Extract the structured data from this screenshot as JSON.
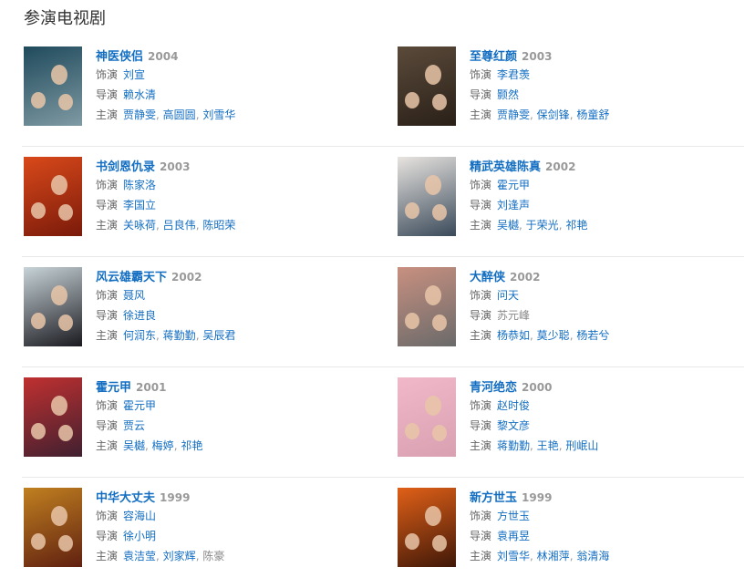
{
  "section_title": "参演电视剧",
  "labels": {
    "role": "饰演",
    "director": "导演",
    "stars": "主演",
    "separator": ", "
  },
  "colors": {
    "link": "#136ec2",
    "year": "#999999",
    "label": "#666666",
    "divider": "#e8e8e8"
  },
  "items": [
    {
      "title": "神医侠侣",
      "year": "2004",
      "role": [
        {
          "name": "刘宣",
          "link": true
        }
      ],
      "director": [
        {
          "name": "赖水清",
          "link": true
        }
      ],
      "stars": [
        {
          "name": "贾静雯",
          "link": true
        },
        {
          "name": "高圆圆",
          "link": true
        },
        {
          "name": "刘雪华",
          "link": true
        }
      ],
      "poster_colors": [
        "#1f4a5c",
        "#7f9aa3"
      ]
    },
    {
      "title": "至尊红颜",
      "year": "2003",
      "role": [
        {
          "name": "李君羡",
          "link": true
        }
      ],
      "director": [
        {
          "name": "颢然",
          "link": true
        }
      ],
      "stars": [
        {
          "name": "贾静雯",
          "link": true
        },
        {
          "name": "保剑锋",
          "link": true
        },
        {
          "name": "杨童舒",
          "link": true
        }
      ],
      "poster_colors": [
        "#5a4a3a",
        "#2a2018"
      ]
    },
    {
      "title": "书剑恩仇录",
      "year": "2003",
      "role": [
        {
          "name": "陈家洛",
          "link": true
        }
      ],
      "director": [
        {
          "name": "李国立",
          "link": true
        }
      ],
      "stars": [
        {
          "name": "关咏荷",
          "link": true
        },
        {
          "name": "吕良伟",
          "link": true
        },
        {
          "name": "陈昭荣",
          "link": true
        }
      ],
      "poster_colors": [
        "#d9491a",
        "#7a1a0a"
      ]
    },
    {
      "title": "精武英雄陈真",
      "year": "2002",
      "role": [
        {
          "name": "霍元甲",
          "link": true
        }
      ],
      "director": [
        {
          "name": "刘逢声",
          "link": true
        }
      ],
      "stars": [
        {
          "name": "吴樾",
          "link": true
        },
        {
          "name": "于荣光",
          "link": true
        },
        {
          "name": "祁艳",
          "link": true
        }
      ],
      "poster_colors": [
        "#e8e4e0",
        "#3a4a5a"
      ]
    },
    {
      "title": "风云雄霸天下",
      "year": "2002",
      "role": [
        {
          "name": "聂风",
          "link": true
        }
      ],
      "director": [
        {
          "name": "徐进良",
          "link": true
        }
      ],
      "stars": [
        {
          "name": "何润东",
          "link": true
        },
        {
          "name": "蒋勤勤",
          "link": true
        },
        {
          "name": "吴辰君",
          "link": true
        }
      ],
      "poster_colors": [
        "#c8d4d8",
        "#1a1a20"
      ]
    },
    {
      "title": "大醉侠",
      "year": "2002",
      "role": [
        {
          "name": "问天",
          "link": true
        }
      ],
      "director": [
        {
          "name": "苏元峰",
          "link": false
        }
      ],
      "stars": [
        {
          "name": "杨恭如",
          "link": true
        },
        {
          "name": "莫少聪",
          "link": true
        },
        {
          "name": "杨若兮",
          "link": true
        }
      ],
      "poster_colors": [
        "#c89080",
        "#6a6a6a"
      ]
    },
    {
      "title": "霍元甲",
      "year": "2001",
      "role": [
        {
          "name": "霍元甲",
          "link": true
        }
      ],
      "director": [
        {
          "name": "贾云",
          "link": true
        }
      ],
      "stars": [
        {
          "name": "吴樾",
          "link": true
        },
        {
          "name": "梅婷",
          "link": true
        },
        {
          "name": "祁艳",
          "link": true
        }
      ],
      "poster_colors": [
        "#c03030",
        "#402030"
      ]
    },
    {
      "title": "青河绝恋",
      "year": "2000",
      "role": [
        {
          "name": "赵时俊",
          "link": true
        }
      ],
      "director": [
        {
          "name": "黎文彦",
          "link": true
        }
      ],
      "stars": [
        {
          "name": "蒋勤勤",
          "link": true
        },
        {
          "name": "王艳",
          "link": true
        },
        {
          "name": "刑岷山",
          "link": true
        }
      ],
      "poster_colors": [
        "#f0b8c8",
        "#d8a0b0"
      ]
    },
    {
      "title": "中华大丈夫",
      "year": "1999",
      "role": [
        {
          "name": "容海山",
          "link": true
        }
      ],
      "director": [
        {
          "name": "徐小明",
          "link": true
        }
      ],
      "stars": [
        {
          "name": "袁洁莹",
          "link": true
        },
        {
          "name": "刘家辉",
          "link": true
        },
        {
          "name": "陈豪",
          "link": false
        }
      ],
      "poster_colors": [
        "#c08020",
        "#602010"
      ]
    },
    {
      "title": "新方世玉",
      "year": "1999",
      "role": [
        {
          "name": "方世玉",
          "link": true
        }
      ],
      "director": [
        {
          "name": "袁再昱",
          "link": true
        }
      ],
      "stars": [
        {
          "name": "刘雪华",
          "link": true
        },
        {
          "name": "林湘萍",
          "link": true
        },
        {
          "name": "翁清海",
          "link": true
        }
      ],
      "poster_colors": [
        "#e06018",
        "#401808"
      ]
    }
  ]
}
